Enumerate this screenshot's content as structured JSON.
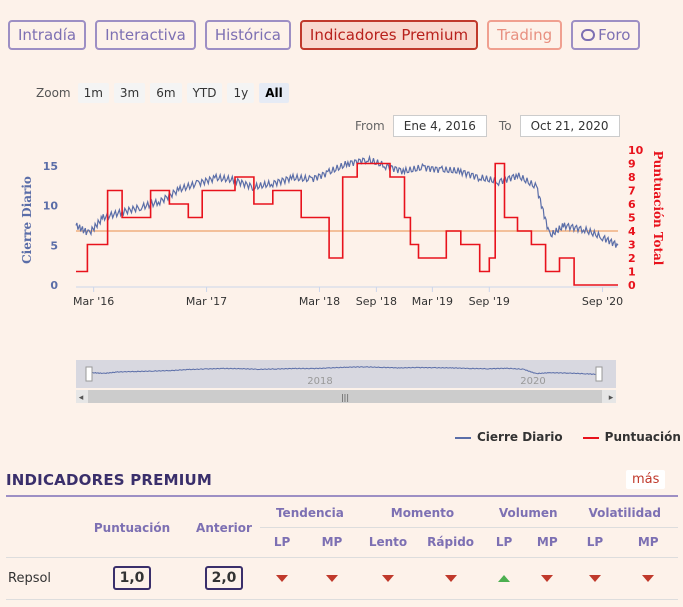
{
  "tabs": [
    {
      "label": "Intradía"
    },
    {
      "label": "Interactiva"
    },
    {
      "label": "Histórica"
    },
    {
      "label": "Indicadores Premium"
    },
    {
      "label": "Trading"
    },
    {
      "label": "Foro"
    }
  ],
  "zoom": {
    "label": "Zoom",
    "options": [
      "1m",
      "3m",
      "6m",
      "YTD",
      "1y",
      "All"
    ],
    "selected": "All"
  },
  "range": {
    "from_label": "From",
    "from_value": "Ene 4, 2016",
    "to_label": "To",
    "to_value": "Oct 21, 2020"
  },
  "chart_data": {
    "type": "line",
    "x_tick_labels": [
      "Mar '16",
      "Mar '17",
      "Mar '18",
      "Sep '18",
      "Mar '19",
      "Sep '19",
      "Sep '20"
    ],
    "x_range": [
      "2016-01-04",
      "2020-10-21"
    ],
    "y_left": {
      "label": "Cierre Diario",
      "ticks": [
        0,
        5,
        10,
        15
      ],
      "range": [
        0,
        17
      ]
    },
    "y_right": {
      "label": "Puntuación Total",
      "ticks": [
        0,
        1,
        2,
        3,
        4,
        5,
        6,
        7,
        8,
        9,
        10
      ],
      "range": [
        0,
        10
      ]
    },
    "reference_line": {
      "axis": "right",
      "value": 4,
      "color": "#f0b080"
    },
    "series": [
      {
        "name": "Cierre Diario",
        "axis": "left",
        "color": "#5b6ea8",
        "x": [
          "2016-01-04",
          "2016-02-15",
          "2016-04-01",
          "2016-06-01",
          "2016-08-01",
          "2016-10-01",
          "2016-12-01",
          "2017-02-01",
          "2017-04-01",
          "2017-06-01",
          "2017-08-01",
          "2017-10-01",
          "2017-12-01",
          "2018-02-01",
          "2018-04-01",
          "2018-06-01",
          "2018-08-01",
          "2018-10-01",
          "2018-12-01",
          "2019-02-01",
          "2019-04-01",
          "2019-06-01",
          "2019-08-01",
          "2019-10-01",
          "2019-12-01",
          "2020-02-01",
          "2020-03-15",
          "2020-05-01",
          "2020-07-01",
          "2020-09-01",
          "2020-10-21"
        ],
        "y": [
          7.5,
          6.5,
          8.5,
          9.2,
          9.8,
          10.5,
          12.0,
          12.8,
          13.5,
          13.2,
          12.3,
          12.8,
          13.5,
          13.3,
          14.2,
          15.3,
          15.8,
          15.0,
          14.3,
          14.8,
          14.5,
          14.3,
          13.5,
          13.0,
          13.8,
          12.3,
          6.2,
          7.5,
          7.0,
          6.0,
          5.0
        ]
      },
      {
        "name": "Puntuación",
        "axis": "right",
        "color": "#e8121c",
        "x": [
          "2016-01-04",
          "2016-02-10",
          "2016-04-15",
          "2016-06-01",
          "2016-09-01",
          "2016-11-01",
          "2017-01-01",
          "2017-02-15",
          "2017-04-01",
          "2017-06-01",
          "2017-08-01",
          "2017-10-01",
          "2017-11-15",
          "2018-01-01",
          "2018-02-15",
          "2018-04-01",
          "2018-05-15",
          "2018-07-01",
          "2018-09-01",
          "2018-10-15",
          "2018-12-01",
          "2018-12-20",
          "2019-01-15",
          "2019-03-01",
          "2019-04-15",
          "2019-06-01",
          "2019-08-01",
          "2019-09-01",
          "2019-09-20",
          "2019-10-20",
          "2019-12-01",
          "2020-01-15",
          "2020-03-01",
          "2020-04-15",
          "2020-06-01",
          "2020-10-21"
        ],
        "y": [
          1,
          3,
          7,
          5,
          7,
          6,
          5,
          7,
          7,
          8,
          6,
          7,
          7,
          5,
          5,
          2,
          8,
          9,
          9,
          8,
          5,
          3,
          2,
          2,
          4,
          3,
          1,
          2,
          9,
          5,
          4,
          3,
          1,
          2,
          0,
          0
        ]
      }
    ]
  },
  "navigator": {
    "labels": [
      "2018",
      "2020"
    ]
  },
  "legend": {
    "items": [
      {
        "label": "Cierre Diario",
        "color": "#5b6ea8"
      },
      {
        "label": "Puntuación",
        "color": "#e8121c"
      }
    ]
  },
  "section": {
    "title": "INDICADORES PREMIUM",
    "more_label": "más"
  },
  "table": {
    "col_puntuacion": "Puntuación",
    "col_anterior": "Anterior",
    "groups": [
      "Tendencia",
      "Momento",
      "Volumen",
      "Volatilidad"
    ],
    "subheaders": [
      "LP",
      "MP",
      "Lento",
      "Rápido",
      "LP",
      "MP",
      "LP",
      "MP"
    ],
    "rows": [
      {
        "name": "Repsol",
        "puntuacion": "1,0",
        "anterior": "2,0",
        "signals": [
          "down",
          "down",
          "down",
          "down",
          "up",
          "down",
          "down",
          "down"
        ]
      }
    ]
  }
}
